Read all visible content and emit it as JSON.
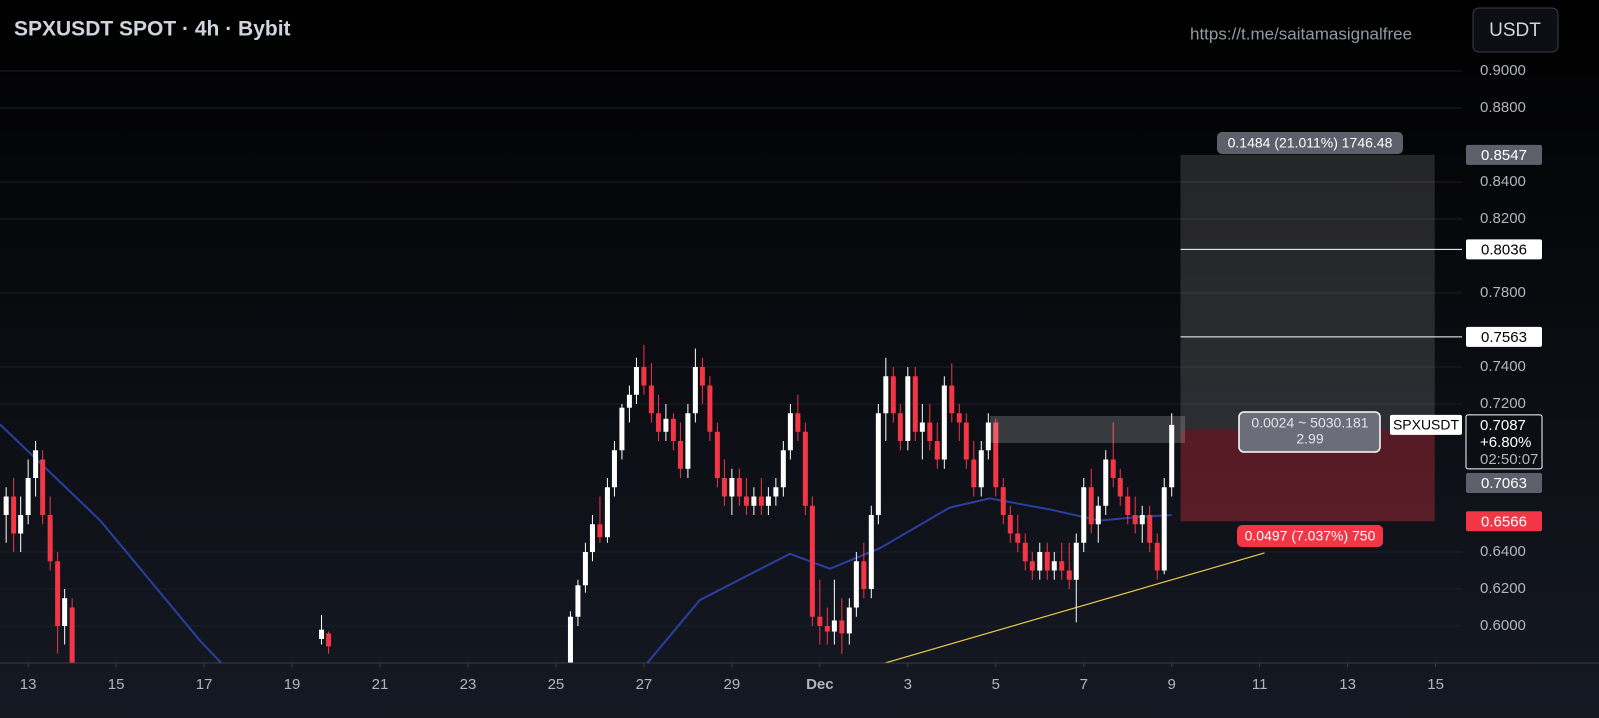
{
  "chart_data": {
    "type": "candlestick",
    "title": "SPXUSDT SPOT · 4h · Bybit",
    "watermark": "https://t.me/saitamasignalfree",
    "currency_button": "USDT",
    "symbol": "SPXUSDT",
    "xlim": [
      12.36,
      45.6
    ],
    "ylim": [
      0.58,
      0.9384
    ],
    "xticks": [
      13,
      15,
      17,
      19,
      21,
      23,
      25,
      27,
      29,
      {
        "value": 31,
        "label": "Dec"
      },
      {
        "value": 33,
        "label": "3"
      },
      {
        "value": 35,
        "label": "5"
      },
      {
        "value": 37,
        "label": "7"
      },
      {
        "value": 39,
        "label": "9"
      },
      {
        "value": 41,
        "label": "11"
      },
      {
        "value": 43,
        "label": "13"
      },
      {
        "value": 45,
        "label": "15"
      }
    ],
    "yticks": [
      {
        "value": 0.9,
        "label": "0.9000"
      },
      {
        "value": 0.88,
        "label": "0.8800"
      },
      {
        "value": 0.84,
        "label": "0.8400"
      },
      {
        "value": 0.82,
        "label": "0.8200"
      },
      {
        "value": 0.78,
        "label": "0.7800"
      },
      {
        "value": 0.74,
        "label": "0.7400"
      },
      {
        "value": 0.72,
        "label": "0.7200"
      },
      {
        "value": 0.64,
        "label": "0.6400"
      },
      {
        "value": 0.62,
        "label": "0.6200"
      },
      {
        "value": 0.6,
        "label": "0.6000"
      }
    ],
    "grid": true,
    "up_color": "#ffffff",
    "down_color": "#f23645",
    "candles": [
      {
        "x": 12.5,
        "open": 0.66,
        "high": 0.675,
        "low": 0.645,
        "close": 0.67
      },
      {
        "x": 12.67,
        "open": 0.67,
        "high": 0.68,
        "low": 0.64,
        "close": 0.65
      },
      {
        "x": 12.83,
        "open": 0.65,
        "high": 0.67,
        "low": 0.64,
        "close": 0.66
      },
      {
        "x": 13.0,
        "open": 0.66,
        "high": 0.69,
        "low": 0.655,
        "close": 0.68
      },
      {
        "x": 13.17,
        "open": 0.68,
        "high": 0.7,
        "low": 0.67,
        "close": 0.695
      },
      {
        "x": 13.33,
        "open": 0.69,
        "high": 0.695,
        "low": 0.655,
        "close": 0.66
      },
      {
        "x": 13.5,
        "open": 0.66,
        "high": 0.67,
        "low": 0.63,
        "close": 0.635
      },
      {
        "x": 13.67,
        "open": 0.635,
        "high": 0.64,
        "low": 0.585,
        "close": 0.6
      },
      {
        "x": 13.83,
        "open": 0.6,
        "high": 0.62,
        "low": 0.59,
        "close": 0.615
      },
      {
        "x": 14.0,
        "open": 0.61,
        "high": 0.615,
        "low": 0.57,
        "close": 0.58
      },
      {
        "x": 19.67,
        "open": 0.593,
        "high": 0.606,
        "low": 0.59,
        "close": 0.598
      },
      {
        "x": 19.83,
        "open": 0.596,
        "high": 0.597,
        "low": 0.585,
        "close": 0.589
      },
      {
        "x": 25.33,
        "open": 0.58,
        "high": 0.608,
        "low": 0.575,
        "close": 0.605
      },
      {
        "x": 25.5,
        "open": 0.605,
        "high": 0.625,
        "low": 0.6,
        "close": 0.622
      },
      {
        "x": 25.67,
        "open": 0.622,
        "high": 0.645,
        "low": 0.618,
        "close": 0.64
      },
      {
        "x": 25.83,
        "open": 0.64,
        "high": 0.66,
        "low": 0.635,
        "close": 0.655
      },
      {
        "x": 26.0,
        "open": 0.655,
        "high": 0.67,
        "low": 0.645,
        "close": 0.648
      },
      {
        "x": 26.17,
        "open": 0.648,
        "high": 0.68,
        "low": 0.645,
        "close": 0.675
      },
      {
        "x": 26.33,
        "open": 0.675,
        "high": 0.7,
        "low": 0.67,
        "close": 0.695
      },
      {
        "x": 26.5,
        "open": 0.695,
        "high": 0.72,
        "low": 0.69,
        "close": 0.718
      },
      {
        "x": 26.67,
        "open": 0.718,
        "high": 0.73,
        "low": 0.71,
        "close": 0.725
      },
      {
        "x": 26.83,
        "open": 0.725,
        "high": 0.745,
        "low": 0.72,
        "close": 0.74
      },
      {
        "x": 27.0,
        "open": 0.74,
        "high": 0.752,
        "low": 0.725,
        "close": 0.73
      },
      {
        "x": 27.17,
        "open": 0.73,
        "high": 0.742,
        "low": 0.71,
        "close": 0.715
      },
      {
        "x": 27.33,
        "open": 0.715,
        "high": 0.725,
        "low": 0.7,
        "close": 0.705
      },
      {
        "x": 27.5,
        "open": 0.705,
        "high": 0.72,
        "low": 0.7,
        "close": 0.712
      },
      {
        "x": 27.67,
        "open": 0.712,
        "high": 0.715,
        "low": 0.695,
        "close": 0.7
      },
      {
        "x": 27.83,
        "open": 0.7,
        "high": 0.71,
        "low": 0.68,
        "close": 0.685
      },
      {
        "x": 28.0,
        "open": 0.685,
        "high": 0.72,
        "low": 0.68,
        "close": 0.715
      },
      {
        "x": 28.17,
        "open": 0.715,
        "high": 0.75,
        "low": 0.71,
        "close": 0.74
      },
      {
        "x": 28.33,
        "open": 0.74,
        "high": 0.745,
        "low": 0.72,
        "close": 0.73
      },
      {
        "x": 28.5,
        "open": 0.73,
        "high": 0.735,
        "low": 0.7,
        "close": 0.705
      },
      {
        "x": 28.67,
        "open": 0.705,
        "high": 0.71,
        "low": 0.675,
        "close": 0.68
      },
      {
        "x": 28.83,
        "open": 0.68,
        "high": 0.69,
        "low": 0.665,
        "close": 0.67
      },
      {
        "x": 29.0,
        "open": 0.67,
        "high": 0.685,
        "low": 0.66,
        "close": 0.68
      },
      {
        "x": 29.17,
        "open": 0.68,
        "high": 0.685,
        "low": 0.665,
        "close": 0.67
      },
      {
        "x": 29.33,
        "open": 0.67,
        "high": 0.68,
        "low": 0.66,
        "close": 0.665
      },
      {
        "x": 29.5,
        "open": 0.665,
        "high": 0.675,
        "low": 0.66,
        "close": 0.67
      },
      {
        "x": 29.67,
        "open": 0.67,
        "high": 0.68,
        "low": 0.66,
        "close": 0.665
      },
      {
        "x": 29.83,
        "open": 0.665,
        "high": 0.675,
        "low": 0.66,
        "close": 0.67
      },
      {
        "x": 30.0,
        "open": 0.67,
        "high": 0.68,
        "low": 0.665,
        "close": 0.675
      },
      {
        "x": 30.17,
        "open": 0.675,
        "high": 0.7,
        "low": 0.67,
        "close": 0.695
      },
      {
        "x": 30.33,
        "open": 0.695,
        "high": 0.72,
        "low": 0.69,
        "close": 0.715
      },
      {
        "x": 30.5,
        "open": 0.715,
        "high": 0.725,
        "low": 0.7,
        "close": 0.705
      },
      {
        "x": 30.67,
        "open": 0.705,
        "high": 0.71,
        "low": 0.66,
        "close": 0.665
      },
      {
        "x": 30.83,
        "open": 0.665,
        "high": 0.67,
        "low": 0.6,
        "close": 0.605
      },
      {
        "x": 31.0,
        "open": 0.605,
        "high": 0.625,
        "low": 0.59,
        "close": 0.6
      },
      {
        "x": 31.17,
        "open": 0.6,
        "high": 0.61,
        "low": 0.59,
        "close": 0.597
      },
      {
        "x": 31.33,
        "open": 0.597,
        "high": 0.625,
        "low": 0.59,
        "close": 0.603
      },
      {
        "x": 31.5,
        "open": 0.603,
        "high": 0.615,
        "low": 0.585,
        "close": 0.596
      },
      {
        "x": 31.67,
        "open": 0.596,
        "high": 0.615,
        "low": 0.59,
        "close": 0.61
      },
      {
        "x": 31.83,
        "open": 0.61,
        "high": 0.64,
        "low": 0.605,
        "close": 0.635
      },
      {
        "x": 32.0,
        "open": 0.635,
        "high": 0.645,
        "low": 0.615,
        "close": 0.62
      },
      {
        "x": 32.17,
        "open": 0.62,
        "high": 0.665,
        "low": 0.615,
        "close": 0.66
      },
      {
        "x": 32.33,
        "open": 0.66,
        "high": 0.72,
        "low": 0.655,
        "close": 0.715
      },
      {
        "x": 32.5,
        "open": 0.715,
        "high": 0.745,
        "low": 0.7,
        "close": 0.735
      },
      {
        "x": 32.67,
        "open": 0.735,
        "high": 0.74,
        "low": 0.71,
        "close": 0.715
      },
      {
        "x": 32.83,
        "open": 0.715,
        "high": 0.72,
        "low": 0.695,
        "close": 0.7
      },
      {
        "x": 33.0,
        "open": 0.7,
        "high": 0.74,
        "low": 0.695,
        "close": 0.735
      },
      {
        "x": 33.17,
        "open": 0.735,
        "high": 0.74,
        "low": 0.7,
        "close": 0.705
      },
      {
        "x": 33.33,
        "open": 0.705,
        "high": 0.72,
        "low": 0.69,
        "close": 0.71
      },
      {
        "x": 33.5,
        "open": 0.71,
        "high": 0.72,
        "low": 0.695,
        "close": 0.7
      },
      {
        "x": 33.67,
        "open": 0.7,
        "high": 0.71,
        "low": 0.685,
        "close": 0.69
      },
      {
        "x": 33.83,
        "open": 0.69,
        "high": 0.735,
        "low": 0.685,
        "close": 0.73
      },
      {
        "x": 34.0,
        "open": 0.73,
        "high": 0.742,
        "low": 0.71,
        "close": 0.715
      },
      {
        "x": 34.17,
        "open": 0.715,
        "high": 0.72,
        "low": 0.7,
        "close": 0.71
      },
      {
        "x": 34.33,
        "open": 0.71,
        "high": 0.715,
        "low": 0.685,
        "close": 0.69
      },
      {
        "x": 34.5,
        "open": 0.69,
        "high": 0.7,
        "low": 0.67,
        "close": 0.675
      },
      {
        "x": 34.67,
        "open": 0.675,
        "high": 0.7,
        "low": 0.67,
        "close": 0.695
      },
      {
        "x": 34.83,
        "open": 0.695,
        "high": 0.715,
        "low": 0.69,
        "close": 0.71
      },
      {
        "x": 35.0,
        "open": 0.71,
        "high": 0.712,
        "low": 0.67,
        "close": 0.675
      },
      {
        "x": 35.17,
        "open": 0.675,
        "high": 0.68,
        "low": 0.655,
        "close": 0.66
      },
      {
        "x": 35.33,
        "open": 0.66,
        "high": 0.665,
        "low": 0.645,
        "close": 0.65
      },
      {
        "x": 35.5,
        "open": 0.65,
        "high": 0.66,
        "low": 0.64,
        "close": 0.645
      },
      {
        "x": 35.67,
        "open": 0.645,
        "high": 0.65,
        "low": 0.63,
        "close": 0.635
      },
      {
        "x": 35.83,
        "open": 0.635,
        "high": 0.64,
        "low": 0.625,
        "close": 0.63
      },
      {
        "x": 36.0,
        "open": 0.63,
        "high": 0.645,
        "low": 0.625,
        "close": 0.64
      },
      {
        "x": 36.17,
        "open": 0.64,
        "high": 0.645,
        "low": 0.625,
        "close": 0.63
      },
      {
        "x": 36.33,
        "open": 0.63,
        "high": 0.64,
        "low": 0.625,
        "close": 0.635
      },
      {
        "x": 36.5,
        "open": 0.635,
        "high": 0.645,
        "low": 0.625,
        "close": 0.63
      },
      {
        "x": 36.67,
        "open": 0.63,
        "high": 0.645,
        "low": 0.62,
        "close": 0.625
      },
      {
        "x": 36.83,
        "open": 0.625,
        "high": 0.65,
        "low": 0.602,
        "close": 0.645
      },
      {
        "x": 37.0,
        "open": 0.645,
        "high": 0.68,
        "low": 0.64,
        "close": 0.675
      },
      {
        "x": 37.17,
        "open": 0.675,
        "high": 0.685,
        "low": 0.65,
        "close": 0.655
      },
      {
        "x": 37.33,
        "open": 0.655,
        "high": 0.67,
        "low": 0.645,
        "close": 0.665
      },
      {
        "x": 37.5,
        "open": 0.665,
        "high": 0.695,
        "low": 0.66,
        "close": 0.69
      },
      {
        "x": 37.67,
        "open": 0.69,
        "high": 0.71,
        "low": 0.675,
        "close": 0.68
      },
      {
        "x": 37.83,
        "open": 0.68,
        "high": 0.685,
        "low": 0.665,
        "close": 0.67
      },
      {
        "x": 38.0,
        "open": 0.67,
        "high": 0.675,
        "low": 0.655,
        "close": 0.66
      },
      {
        "x": 38.17,
        "open": 0.66,
        "high": 0.67,
        "low": 0.65,
        "close": 0.655
      },
      {
        "x": 38.33,
        "open": 0.655,
        "high": 0.665,
        "low": 0.645,
        "close": 0.66
      },
      {
        "x": 38.5,
        "open": 0.66,
        "high": 0.665,
        "low": 0.64,
        "close": 0.645
      },
      {
        "x": 38.67,
        "open": 0.645,
        "high": 0.65,
        "low": 0.625,
        "close": 0.63
      },
      {
        "x": 38.83,
        "open": 0.63,
        "high": 0.68,
        "low": 0.628,
        "close": 0.675
      },
      {
        "x": 39.0,
        "open": 0.675,
        "high": 0.715,
        "low": 0.67,
        "close": 0.7087
      }
    ],
    "moving_average": {
      "color": "#2a3fa0",
      "x": [
        12.36,
        14.64,
        16.91,
        17.59,
        26.9,
        28.27,
        30.32,
        31.23,
        32.36,
        33.95,
        34.86,
        36.23,
        37.36,
        38.27,
        39.0
      ],
      "values": [
        0.709,
        0.657,
        0.592,
        0.575,
        0.575,
        0.614,
        0.639,
        0.631,
        0.642,
        0.664,
        0.669,
        0.663,
        0.657,
        0.659,
        0.66
      ]
    },
    "trendline": {
      "color": "#e8c94a",
      "x": [
        32.48,
        41.11
      ],
      "values": [
        0.58,
        0.6395
      ]
    },
    "position": {
      "x_start": 39.2,
      "x_end": 44.98,
      "entry": 0.7063,
      "target": 0.8547,
      "stop": 0.6566,
      "target_label": "0.1484 (21.011%) 1746.48",
      "stop_label": "0.0497 (7.037%) 750",
      "info_line1": "0.0024 ~ 5030.181",
      "info_line2": "2.99"
    },
    "levels": [
      0.8036,
      0.7563
    ],
    "last_price": 0.7087,
    "last_change": "+6.80%",
    "countdown": "02:50:07"
  }
}
